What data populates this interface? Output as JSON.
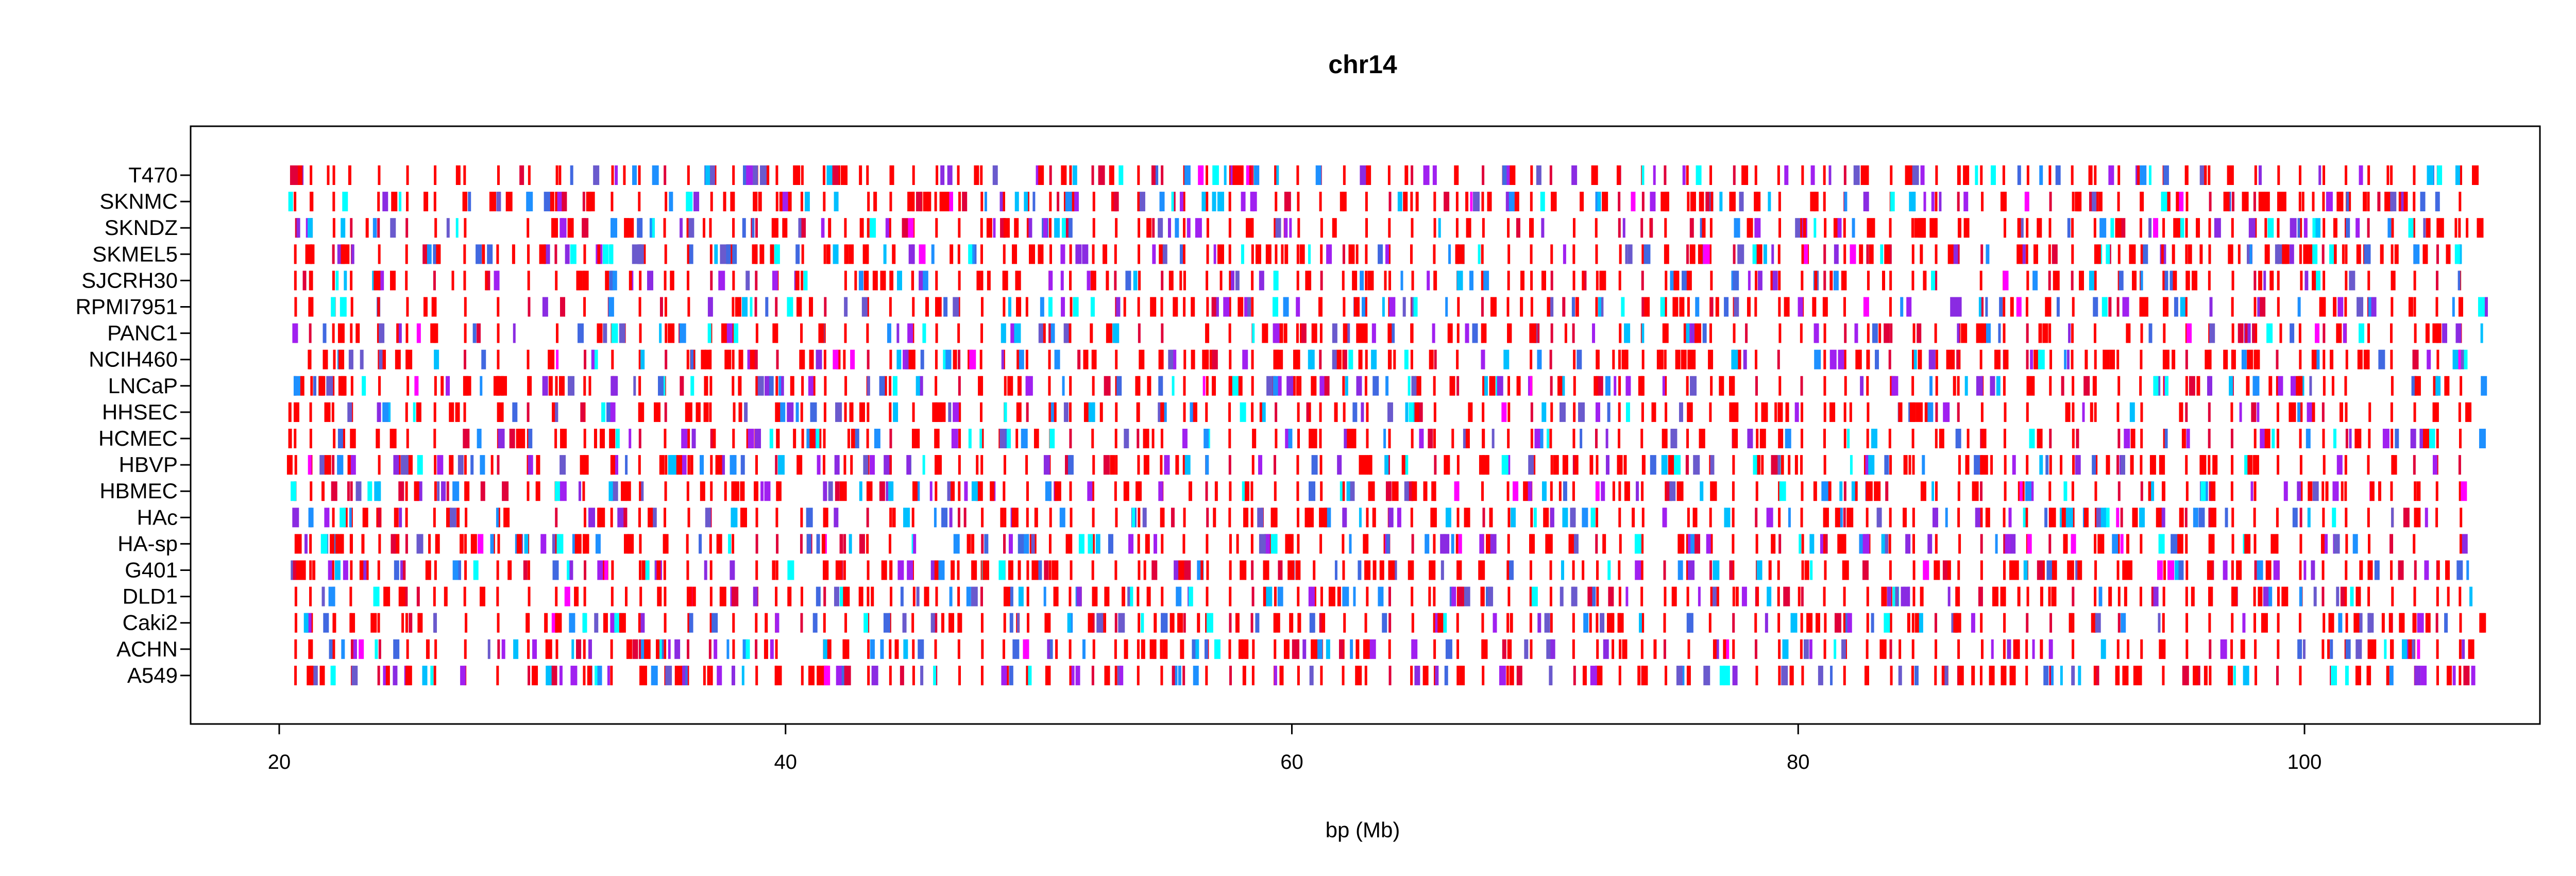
{
  "chart_data": {
    "type": "heatmap",
    "title": "chr14",
    "xlabel": "bp (Mb)",
    "ylabel": "",
    "xlim": [
      16.5,
      109.3
    ],
    "x_ticks": [
      20,
      40,
      60,
      80,
      100
    ],
    "x_tick_labels": [
      "20",
      "40",
      "60",
      "80",
      "100"
    ],
    "grid": false,
    "legend": "none",
    "data_extent": [
      20.3,
      107.0
    ],
    "colors": [
      "#ff0000",
      "#e0003a",
      "#a020f0",
      "#8a2be2",
      "#6a5acd",
      "#4169e1",
      "#1e90ff",
      "#00bfff",
      "#00ffff",
      "#ff00ff"
    ],
    "common_positions": [
      20.6,
      21.2,
      22.1,
      22.8,
      23.9,
      25.0,
      26.1,
      27.3,
      28.6,
      29.8,
      30.9,
      32.0,
      33.1,
      34.2,
      35.2,
      36.1,
      37.0,
      37.9,
      38.8,
      39.6,
      40.6,
      41.5,
      42.3,
      43.2,
      44.1,
      45.0,
      45.9,
      46.8,
      47.7,
      48.6,
      49.5,
      50.4,
      51.2,
      52.1,
      53.0,
      53.9,
      54.8,
      55.7,
      56.6,
      57.5,
      58.4,
      59.3,
      60.2,
      61.1,
      62.0,
      62.9,
      63.8,
      64.7,
      65.6,
      66.5,
      67.5,
      68.5,
      69.4,
      70.2,
      71.1,
      72.0,
      72.9,
      73.8,
      74.7,
      75.6,
      76.5,
      77.4,
      78.3,
      79.2,
      80.1,
      81.0,
      81.8,
      82.7,
      83.6,
      84.5,
      85.4,
      86.3,
      87.2,
      88.1,
      89.0,
      89.9,
      90.8,
      91.7,
      92.6,
      93.5,
      94.4,
      95.3,
      96.2,
      97.1,
      98.0,
      98.9,
      99.8,
      100.7,
      101.6,
      102.5,
      103.4,
      104.3,
      105.2,
      106.1
    ],
    "cell_lines": [
      "T470",
      "SKNMC",
      "SKNDZ",
      "SKMEL5",
      "SJCRH30",
      "RPMI7951",
      "PANC1",
      "NCIH460",
      "LNCaP",
      "HHSEC",
      "HCMEC",
      "HBVP",
      "HBMEC",
      "HAc",
      "HA-sp",
      "G401",
      "DLD1",
      "Caki2",
      "ACHN",
      "A549"
    ]
  }
}
